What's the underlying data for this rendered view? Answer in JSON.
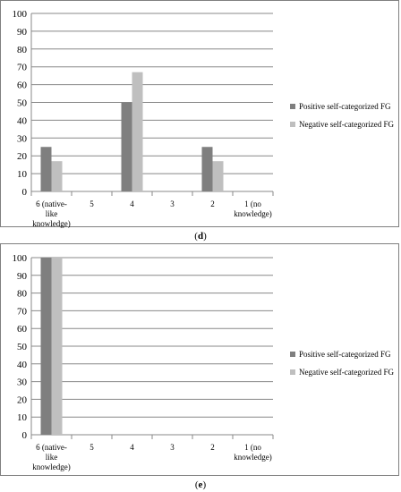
{
  "chart_data": [
    {
      "type": "bar",
      "categories": [
        "6 (native-like knowledge)",
        "5",
        "4",
        "3",
        "2",
        "1 (no knowledge)"
      ],
      "category_lines": [
        [
          "6 (native-",
          "like",
          "knowledge)"
        ],
        [
          "5"
        ],
        [
          "4"
        ],
        [
          "3"
        ],
        [
          "2"
        ],
        [
          "1 (no",
          "knowledge)"
        ]
      ],
      "series": [
        {
          "name": "Positive self-categorized FG",
          "values": [
            25,
            0,
            50,
            0,
            25,
            0
          ],
          "color": "#7f7f7f"
        },
        {
          "name": "Negative self-categorized FG",
          "values": [
            17,
            0,
            67,
            0,
            17,
            0
          ],
          "color": "#bfbfbf"
        }
      ],
      "ylim": [
        0,
        100
      ],
      "yticks": [
        "0",
        "10",
        "20",
        "30",
        "40",
        "50",
        "60",
        "70",
        "80",
        "90",
        "100"
      ],
      "grid": true,
      "legend": "right",
      "caption_open": "(",
      "caption_letter": "d",
      "caption_close": ")"
    },
    {
      "type": "bar",
      "categories": [
        "6 (native-like knowledge)",
        "5",
        "4",
        "3",
        "2",
        "1 (no knowledge)"
      ],
      "category_lines": [
        [
          "6 (native-",
          "like",
          "knowledge)"
        ],
        [
          "5"
        ],
        [
          "4"
        ],
        [
          "3"
        ],
        [
          "2"
        ],
        [
          "1 (no",
          "knowledge)"
        ]
      ],
      "series": [
        {
          "name": "Positive self-categorized FG",
          "values": [
            100,
            0,
            0,
            0,
            0,
            0
          ],
          "color": "#7f7f7f"
        },
        {
          "name": "Negative self-categorized FG",
          "values": [
            100,
            0,
            0,
            0,
            0,
            0
          ],
          "color": "#bfbfbf"
        }
      ],
      "ylim": [
        0,
        100
      ],
      "yticks": [
        "0",
        "10",
        "20",
        "30",
        "40",
        "50",
        "60",
        "70",
        "80",
        "90",
        "100"
      ],
      "grid": true,
      "legend": "right",
      "caption_open": "(",
      "caption_letter": "e",
      "caption_close": ")"
    }
  ]
}
